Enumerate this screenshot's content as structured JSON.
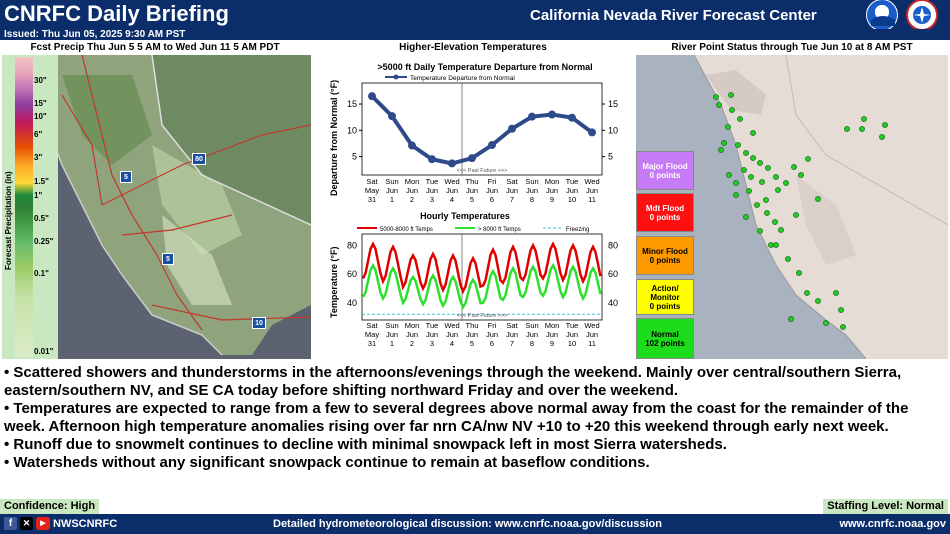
{
  "header": {
    "title": "CNRFC Daily Briefing",
    "center_title": "California Nevada River Forecast Center",
    "issued": "Issued: Thu Jun 05, 2025 9:30 AM PST"
  },
  "precip_panel": {
    "title": "Fcst Precip Thu Jun 5 5 AM to Wed Jun 11 5 AM PDT",
    "axis_label": "Forecast Precipitation (in)",
    "legend_labels": [
      "30\"",
      "15\"",
      "10\"",
      "6\"",
      "3\"",
      "1.5\"",
      "1\"",
      "0.5\"",
      "0.25\"",
      "0.1\"",
      "0.01\""
    ]
  },
  "temp_panel": {
    "title": "Higher-Elevation Temperatures",
    "daily": {
      "title": ">5000 ft Daily Temperature Departure from Normal",
      "legend": "Temperature Departure from Normal",
      "ylabel": "Departure from Normal (°F)",
      "past_future": "<<< Past   Future >>>"
    },
    "hourly": {
      "title": "Hourly Temperatures",
      "legend_a": "5000-8000 ft Temps",
      "legend_b": "> 8000 ft Temps",
      "legend_c": "Freezing",
      "ylabel": "Temperature (°F)",
      "past_future": "<<< Past   Future >>>"
    }
  },
  "chart_data": [
    {
      "type": "line",
      "title": ">5000 ft Daily Temperature Departure from Normal",
      "ylabel": "Departure from Normal (°F)",
      "x": [
        "Sat May 31",
        "Sun Jun 1",
        "Mon Jun 2",
        "Tue Jun 3",
        "Wed Jun 4",
        "Thu Jun 5",
        "Fri Jun 6",
        "Sat Jun 7",
        "Sun Jun 8",
        "Mon Jun 9",
        "Tue Jun 10",
        "Wed Jun 11"
      ],
      "xtick_day": [
        "Sat",
        "Sun",
        "Mon",
        "Tue",
        "Wed",
        "Thu",
        "Fri",
        "Sat",
        "Sun",
        "Mon",
        "Tue",
        "Wed"
      ],
      "xtick_mon": [
        "May",
        "Jun",
        "Jun",
        "Jun",
        "Jun",
        "Jun",
        "Jun",
        "Jun",
        "Jun",
        "Jun",
        "Jun",
        "Jun"
      ],
      "xtick_date": [
        "31",
        "1",
        "2",
        "3",
        "4",
        "5",
        "6",
        "7",
        "8",
        "9",
        "10",
        "11"
      ],
      "yticks": [
        5,
        10,
        15
      ],
      "ylim": [
        1.5,
        19
      ],
      "series": [
        {
          "name": "Temperature Departure from Normal",
          "values": [
            16.5,
            12.7,
            7.1,
            4.5,
            3.7,
            4.7,
            7.2,
            10.3,
            12.6,
            13.0,
            12.4,
            9.6
          ]
        }
      ]
    },
    {
      "type": "line",
      "title": "Hourly Temperatures",
      "ylabel": "Temperature (°F)",
      "yticks": [
        40,
        60,
        80
      ],
      "ylim": [
        28,
        88
      ],
      "freezing": 32,
      "series": [
        {
          "name": "5000-8000 ft Temps",
          "max": [
            81,
            79,
            73,
            74,
            73,
            71,
            77,
            79,
            80,
            81,
            80,
            79
          ],
          "min": [
            57,
            55,
            51,
            50,
            49,
            48,
            52,
            54,
            56,
            57,
            56,
            55
          ]
        },
        {
          "name": "> 8000 ft Temps",
          "max": [
            66,
            64,
            58,
            59,
            58,
            56,
            62,
            64,
            65,
            66,
            65,
            64
          ],
          "min": [
            44,
            43,
            40,
            39,
            38,
            37,
            40,
            42,
            44,
            45,
            44,
            43
          ]
        }
      ]
    }
  ],
  "river_panel": {
    "title": "River Point Status through Tue Jun 10 at 8 AM PST",
    "statuses": [
      {
        "label": "Major Flood",
        "count": "0 points",
        "color": "#c77af5",
        "text_color": "#ffffff"
      },
      {
        "label": "Mdt Flood",
        "count": "0 points",
        "color": "#ff1010",
        "text_color": "#ffffff"
      },
      {
        "label": "Minor Flood",
        "count": "0 points",
        "color": "#ff9900",
        "text_color": "#000000"
      },
      {
        "label": "Action/ Monitor",
        "count": "0 points",
        "color": "#ffff00",
        "text_color": "#000000"
      },
      {
        "label": "Normal",
        "count": "102 points",
        "color": "#1cdc1c",
        "text_color": "#000000"
      }
    ]
  },
  "bullets": [
    "• Scattered showers and thunderstorms in the afternoons/evenings through the weekend. Mainly over central/southern Sierra, eastern/southern NV, and SE CA today before shifting northward Friday and over the weekend.",
    "• Temperatures are expected to range from a few to several degrees above normal away from the coast for the remainder of the week. Afternoon high temperature anomalies rising over far nrn CA/nw NV +10 to +20 this weekend through early next week.",
    "• Runoff due to snowmelt continues to decline with minimal snowpack left in most Sierra watersheds.",
    "• Watersheds without any significant snowpack continue to remain at baseflow conditions."
  ],
  "confidence": "Confidence: High",
  "staffing": "Staffing Level: Normal",
  "footer": {
    "social": "NWSCNRFC",
    "discussion": "Detailed hydrometeorological discussion: www.cnrfc.noaa.gov/discussion",
    "url": "www.cnrfc.noaa.gov"
  },
  "map_labels": {
    "i80": "80",
    "i5a": "5",
    "i5b": "5",
    "i10": "10"
  },
  "icons": {
    "facebook": "facebook-icon",
    "x": "x-icon",
    "youtube": "youtube-icon",
    "noaa": "noaa-logo",
    "nws": "nws-logo"
  }
}
